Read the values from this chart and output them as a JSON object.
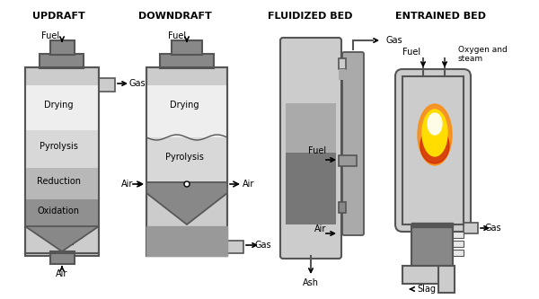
{
  "title_updraft": "UPDRAFT",
  "title_downdraft": "DOWNDRAFT",
  "title_fluidized": "FLUIDIZED BED",
  "title_entrained": "ENTRAINED BED",
  "bg_color": "#ffffff",
  "dark_gray": "#555555",
  "mid_gray": "#888888",
  "light_gray": "#cccccc",
  "very_light_gray": "#e8e8e8",
  "charcoal": "#333333",
  "white": "#ffffff",
  "black": "#000000",
  "flame_orange": "#ff8800",
  "flame_yellow": "#ffdd00",
  "flame_red": "#cc2200"
}
